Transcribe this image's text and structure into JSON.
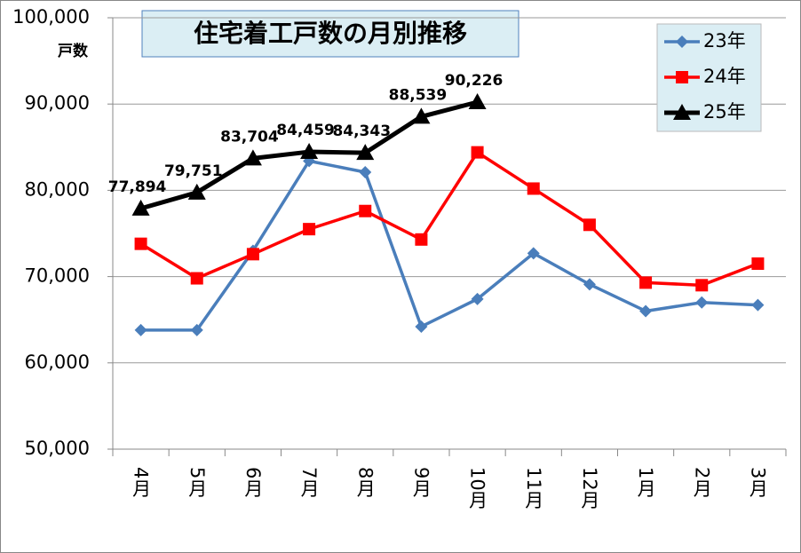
{
  "chart_data": {
    "type": "line",
    "title": "住宅着工戸数の月別推移",
    "y_label": "戸数",
    "categories": [
      "4月",
      "5月",
      "6月",
      "7月",
      "8月",
      "9月",
      "10月",
      "11月",
      "12月",
      "1月",
      "2月",
      "3月"
    ],
    "series": [
      {
        "name": "23年",
        "color": "#4a7ebb",
        "marker": "diamond",
        "values": [
          63800,
          63800,
          73000,
          83400,
          82100,
          64200,
          67400,
          72700,
          69100,
          66000,
          67000,
          66700
        ]
      },
      {
        "name": "24年",
        "color": "#ff0000",
        "marker": "square",
        "values": [
          73800,
          69800,
          72600,
          75500,
          77600,
          74300,
          84400,
          80200,
          76000,
          69300,
          69000,
          71500
        ]
      },
      {
        "name": "25年",
        "color": "#000000",
        "marker": "triangle",
        "values": [
          77894,
          79751,
          83704,
          84459,
          84343,
          88539,
          90226,
          null,
          null,
          null,
          null,
          null
        ],
        "value_labels": [
          "77,894",
          "79,751",
          "83,704",
          "84,459",
          "84,343",
          "88,539",
          "90,226",
          null,
          null,
          null,
          null,
          null
        ]
      }
    ],
    "ylim": [
      50000,
      100000
    ],
    "yticks": [
      {
        "value": 50000,
        "label": "50,000"
      },
      {
        "value": 60000,
        "label": "60,000"
      },
      {
        "value": 70000,
        "label": "70,000"
      },
      {
        "value": 80000,
        "label": "80,000"
      },
      {
        "value": 90000,
        "label": "90,000"
      },
      {
        "value": 100000,
        "label": "100,000"
      }
    ],
    "grid": true,
    "legend": "top-right"
  }
}
